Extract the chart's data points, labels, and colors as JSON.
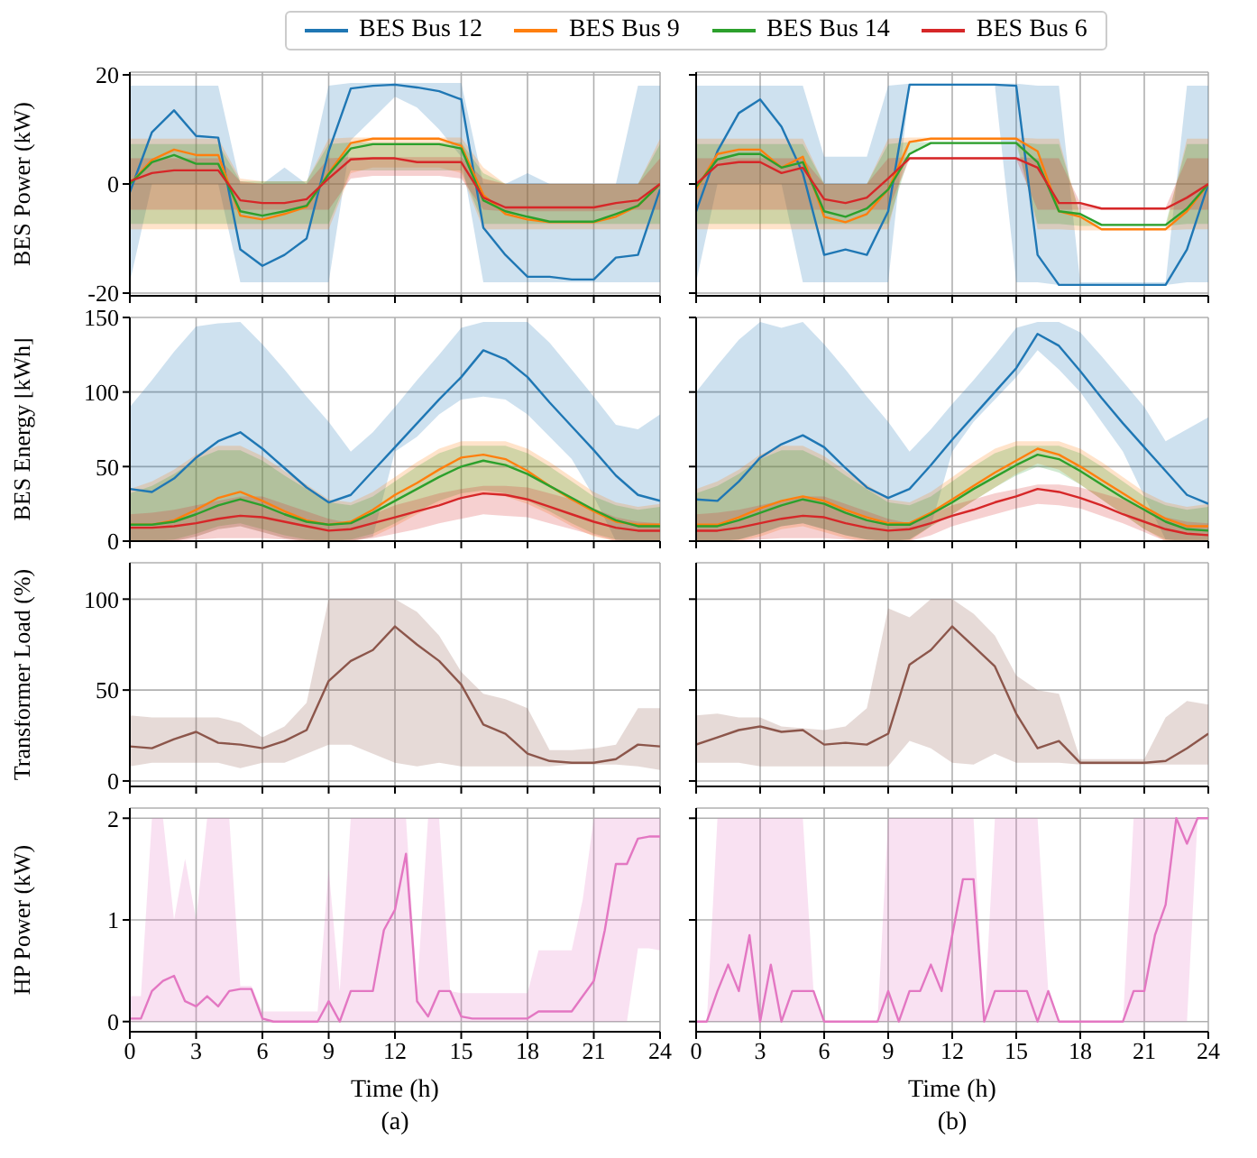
{
  "chart_data": [
    {
      "type": "line",
      "ylabel": "BES Power (kW)",
      "legend": "top",
      "grid": true,
      "tick_labels": "y",
      "xlim": [
        0,
        24
      ],
      "xticks": [
        0,
        3,
        6,
        9,
        12,
        15,
        18,
        21,
        24
      ],
      "ylim": [
        -20.5,
        20.5
      ],
      "yticks": [
        -20,
        0,
        20
      ],
      "x": [
        0,
        1,
        2,
        3,
        4,
        5,
        6,
        7,
        8,
        9,
        10,
        11,
        12,
        13,
        14,
        15,
        16,
        17,
        18,
        19,
        20,
        21,
        22,
        23,
        24
      ],
      "series": [
        {
          "name": "BES Bus 12",
          "color": "#1f77b4",
          "values": [
            -1.5,
            9.5,
            13.5,
            8.8,
            8.5,
            -12,
            -15,
            -13,
            -10,
            6,
            17.5,
            18,
            18.2,
            17.7,
            17,
            15.5,
            -8,
            -13,
            -17,
            -17,
            -17.5,
            -17.5,
            -13.5,
            -13,
            -1
          ],
          "lower": [
            -18,
            0,
            0,
            0,
            0,
            -18,
            -18,
            -18,
            -18,
            -18,
            8,
            12,
            16,
            14,
            10,
            5,
            -18,
            -18,
            -18,
            -18,
            -18,
            -18,
            -18,
            -18,
            -18
          ],
          "upper": [
            18,
            18,
            18,
            18,
            18,
            0,
            0,
            3,
            0,
            18,
            18.5,
            18.5,
            18.5,
            18.5,
            18.5,
            18.5,
            0,
            0,
            2,
            0,
            0,
            0,
            0,
            18,
            18
          ]
        },
        {
          "name": "BES Bus 9",
          "color": "#ff7f0e",
          "values": [
            0,
            4.4,
            6.3,
            5.3,
            5.3,
            -5.8,
            -6.5,
            -5.5,
            -4.2,
            2,
            7.5,
            8.3,
            8.3,
            8.3,
            8.3,
            7,
            -2,
            -5.5,
            -6.5,
            -7,
            -7,
            -7,
            -6,
            -4,
            0
          ],
          "lower": [
            -8.3,
            -8.3,
            -8.3,
            -8.3,
            -8.3,
            -8.3,
            -8.3,
            -8.3,
            -8.3,
            -8.3,
            2,
            3,
            3,
            3,
            3,
            2,
            -8.3,
            -8.3,
            -8.3,
            -8.3,
            -8.3,
            -8.3,
            -8.3,
            -8.3,
            -8.3
          ],
          "upper": [
            8.3,
            8.3,
            8.3,
            8.3,
            8.3,
            1,
            0.5,
            0.5,
            0.5,
            8.3,
            8.5,
            8.5,
            8.5,
            8.5,
            8.5,
            8.5,
            3,
            0,
            0,
            0,
            0,
            0,
            0,
            0,
            8.3
          ]
        },
        {
          "name": "BES Bus 14",
          "color": "#2ca02c",
          "values": [
            0,
            4,
            5.3,
            3.7,
            3.7,
            -5,
            -5.8,
            -5,
            -4,
            1.8,
            6.5,
            7.3,
            7.3,
            7.3,
            7.3,
            6.5,
            -3,
            -5,
            -6,
            -6.9,
            -6.9,
            -6.9,
            -5.5,
            -4,
            0
          ],
          "lower": [
            -7.3,
            -7.3,
            -7.3,
            -7.3,
            -7.3,
            -7.3,
            -7.3,
            -7.3,
            -7.3,
            -7.3,
            2.5,
            2.5,
            2.5,
            2.5,
            2.5,
            2.5,
            -7.3,
            -7.3,
            -7.3,
            -7.3,
            -7.3,
            -7.3,
            -7.3,
            -7.3,
            -7.3
          ],
          "upper": [
            7.3,
            7.3,
            7.3,
            7.3,
            7.3,
            0.5,
            0.5,
            0.5,
            0.5,
            7.3,
            7.6,
            7.6,
            7.6,
            7.6,
            7.6,
            7.6,
            2,
            0,
            0,
            0,
            0,
            0,
            0,
            0,
            7.3
          ]
        },
        {
          "name": "BES Bus 6",
          "color": "#d62728",
          "values": [
            0.5,
            2,
            2.5,
            2.5,
            2.5,
            -3,
            -3.5,
            -3.5,
            -2.8,
            1,
            4.5,
            4.7,
            4.7,
            4,
            4,
            4,
            -2.5,
            -4.3,
            -4.3,
            -4.3,
            -4.3,
            -4.3,
            -3.5,
            -3,
            0
          ],
          "lower": [
            -4.7,
            -4.7,
            -4.7,
            -4.7,
            -4.7,
            -4.7,
            -4.7,
            -4.7,
            -4.7,
            -4.7,
            1,
            1.5,
            1.5,
            1.5,
            1.5,
            1,
            -4.7,
            -5,
            -5,
            -5,
            -5,
            -5,
            -4.7,
            -4.7,
            -4.7
          ],
          "upper": [
            4.7,
            4.7,
            4.7,
            4.7,
            4.7,
            0.5,
            0,
            0,
            0,
            4.7,
            4.9,
            4.9,
            4.9,
            4.9,
            4.9,
            4.9,
            1,
            0,
            0,
            0,
            0,
            0,
            0,
            0,
            4.7
          ]
        }
      ]
    },
    {
      "type": "line",
      "grid": true,
      "tick_labels": false,
      "xlim": [
        0,
        24
      ],
      "xticks": [
        0,
        3,
        6,
        9,
        12,
        15,
        18,
        21,
        24
      ],
      "ylim": [
        -20.5,
        20.5
      ],
      "yticks": [
        -20,
        0,
        20
      ],
      "x": [
        0,
        1,
        2,
        3,
        4,
        5,
        6,
        7,
        8,
        9,
        10,
        11,
        12,
        13,
        14,
        15,
        16,
        17,
        18,
        19,
        20,
        21,
        22,
        23,
        24
      ],
      "series": [
        {
          "color": "#1f77b4",
          "values": [
            -5,
            6,
            13,
            15.5,
            10.5,
            2,
            -13,
            -12,
            -13,
            -5,
            18.2,
            18.2,
            18.2,
            18.2,
            18.2,
            18,
            -13,
            -18.5,
            -18.5,
            -18.5,
            -18.5,
            -18.5,
            -18.5,
            -12,
            0
          ],
          "lower": [
            -18,
            0,
            0,
            0,
            0,
            -18,
            -18,
            -18,
            -18,
            -18,
            18,
            18,
            18,
            18,
            18,
            -18,
            -18,
            -18.5,
            -18.5,
            -18.5,
            -18.5,
            -18.5,
            -18.5,
            -18,
            -18
          ],
          "upper": [
            18,
            18,
            18,
            18,
            18,
            18,
            5,
            5,
            5,
            18,
            18.4,
            18.4,
            18.4,
            18.4,
            18.4,
            18.4,
            18,
            18,
            -18,
            -18,
            -18,
            -18,
            -18,
            18,
            18
          ]
        },
        {
          "color": "#ff7f0e",
          "values": [
            -1,
            5.5,
            6.3,
            6.3,
            3,
            5,
            -6,
            -7,
            -5.5,
            -1,
            7.7,
            8.3,
            8.3,
            8.3,
            8.3,
            8.3,
            6,
            -5,
            -6,
            -8.3,
            -8.3,
            -8.3,
            -8.3,
            -5,
            0
          ],
          "lower": [
            -8.3,
            -8.3,
            -8.3,
            -8.3,
            -8.3,
            -8.3,
            -8.3,
            -8.3,
            -8.3,
            -8.3,
            7.5,
            8.1,
            8.1,
            8.1,
            8.1,
            8.1,
            -8.3,
            -8.3,
            -8.5,
            -8.5,
            -8.5,
            -8.5,
            -8.5,
            -8.3,
            -8.3
          ],
          "upper": [
            8.3,
            8.3,
            8.3,
            8.3,
            8.3,
            8.3,
            0,
            0,
            0,
            8.3,
            8.5,
            8.5,
            8.5,
            8.5,
            8.5,
            8.5,
            8.3,
            8.3,
            -6,
            -8.1,
            -8.1,
            -8.1,
            -8.1,
            8.3,
            8.3
          ]
        },
        {
          "color": "#2ca02c",
          "values": [
            -0.5,
            4.5,
            5.5,
            5.5,
            3,
            4,
            -5,
            -6,
            -4.5,
            -1,
            5.5,
            7.5,
            7.5,
            7.5,
            7.5,
            7.5,
            4,
            -5,
            -5.5,
            -7.5,
            -7.5,
            -7.5,
            -7.5,
            -4.5,
            0
          ],
          "lower": [
            -7.3,
            -7.3,
            -7.3,
            -7.3,
            -7.3,
            -7.3,
            -7.3,
            -7.3,
            -7.3,
            -7.3,
            5.3,
            7.3,
            7.3,
            7.3,
            7.3,
            7.3,
            -7.3,
            -7.3,
            -7.7,
            -7.7,
            -7.7,
            -7.7,
            -7.7,
            -7.3,
            -7.3
          ],
          "upper": [
            7.3,
            7.3,
            7.3,
            7.3,
            7.3,
            7.3,
            0,
            0,
            0,
            7.3,
            7.7,
            7.7,
            7.7,
            7.7,
            7.7,
            7.7,
            7.3,
            7.3,
            -5.5,
            -7.3,
            -7.3,
            -7.3,
            -7.3,
            7.3,
            7.3
          ]
        },
        {
          "color": "#d62728",
          "values": [
            0,
            3.5,
            4,
            4,
            2,
            3,
            -2.8,
            -3.5,
            -2.5,
            1,
            4.7,
            4.7,
            4.7,
            4.7,
            4.7,
            4.7,
            3,
            -3.5,
            -3.5,
            -4.5,
            -4.5,
            -4.5,
            -4.5,
            -2.5,
            0
          ],
          "lower": [
            -4.7,
            -4.7,
            -4.7,
            -4.7,
            -4.7,
            -4.7,
            -4.7,
            -4.7,
            -4.7,
            -4.7,
            4.5,
            4.5,
            4.5,
            4.5,
            4.5,
            4.5,
            -4.7,
            -4.7,
            -4.7,
            -4.7,
            -4.7,
            -4.7,
            -4.7,
            -4.7,
            -4.7
          ],
          "upper": [
            4.7,
            4.7,
            4.7,
            4.7,
            4.7,
            4.7,
            0,
            0,
            0,
            4.7,
            4.9,
            4.9,
            4.9,
            4.9,
            4.9,
            4.9,
            4.7,
            4.7,
            -3.5,
            -4.3,
            -4.3,
            -4.3,
            -4.3,
            4.7,
            4.7
          ]
        }
      ]
    },
    {
      "type": "line",
      "ylabel": "BES Energy [kWh]",
      "grid": true,
      "tick_labels": "y",
      "xlim": [
        0,
        24
      ],
      "xticks": [
        0,
        3,
        6,
        9,
        12,
        15,
        18,
        21,
        24
      ],
      "ylim": [
        0,
        150
      ],
      "yticks": [
        0,
        50,
        100,
        150
      ],
      "x": [
        0,
        1,
        2,
        3,
        4,
        5,
        6,
        7,
        8,
        9,
        10,
        11,
        12,
        13,
        14,
        15,
        16,
        17,
        18,
        19,
        20,
        21,
        22,
        23,
        24
      ],
      "series": [
        {
          "color": "#1f77b4",
          "values": [
            35,
            33,
            42,
            56,
            67,
            73,
            62,
            49,
            36,
            26,
            31,
            47,
            63,
            79,
            95,
            110,
            128,
            122,
            110,
            93,
            77,
            61,
            44,
            31,
            27
          ],
          "lower": [
            0,
            0,
            0,
            3,
            8,
            10,
            6,
            2,
            0,
            0,
            0,
            3,
            60,
            70,
            85,
            95,
            97,
            95,
            85,
            70,
            55,
            30,
            0,
            0,
            0
          ],
          "upper": [
            90,
            108,
            127,
            144,
            146,
            147,
            132,
            115,
            97,
            80,
            60,
            73,
            90,
            108,
            125,
            143,
            147,
            147,
            147,
            133,
            115,
            97,
            78,
            75,
            85
          ]
        },
        {
          "color": "#ff7f0e",
          "values": [
            11,
            11,
            14,
            21,
            29,
            33,
            27,
            20,
            14,
            11,
            13,
            21,
            31,
            39,
            48,
            56,
            58,
            55,
            47,
            37,
            28,
            20,
            13,
            11,
            11
          ],
          "lower": [
            0,
            0,
            0,
            3,
            8,
            10,
            6,
            2,
            0,
            0,
            0,
            3,
            10,
            18,
            25,
            30,
            32,
            30,
            25,
            18,
            10,
            3,
            0,
            0,
            0
          ],
          "upper": [
            35,
            40,
            48,
            58,
            64,
            64,
            57,
            47,
            38,
            28,
            26,
            33,
            43,
            53,
            62,
            67,
            67,
            67,
            62,
            53,
            43,
            33,
            26,
            23,
            25
          ]
        },
        {
          "color": "#2ca02c",
          "values": [
            11,
            11,
            13,
            18,
            24,
            28,
            24,
            18,
            13,
            11,
            12,
            19,
            27,
            35,
            43,
            50,
            54,
            51,
            45,
            37,
            29,
            21,
            14,
            10,
            10
          ],
          "lower": [
            0,
            0,
            1,
            5,
            10,
            12,
            8,
            4,
            1,
            0,
            1,
            5,
            12,
            20,
            27,
            32,
            34,
            32,
            27,
            20,
            12,
            5,
            1,
            0,
            0
          ],
          "upper": [
            32,
            37,
            45,
            55,
            61,
            61,
            54,
            44,
            35,
            26,
            24,
            30,
            40,
            50,
            59,
            64,
            64,
            64,
            59,
            50,
            40,
            30,
            24,
            21,
            23
          ]
        },
        {
          "color": "#d62728",
          "values": [
            9,
            9,
            10,
            12,
            15,
            17,
            16,
            13,
            10,
            7,
            8,
            12,
            16,
            20,
            24,
            29,
            32,
            31,
            28,
            23,
            18,
            13,
            9,
            7,
            7
          ],
          "lower": [
            0,
            0,
            0,
            1,
            2,
            2,
            2,
            1,
            0,
            0,
            0,
            2,
            5,
            8,
            12,
            15,
            18,
            17,
            16,
            12,
            8,
            4,
            0,
            0,
            0
          ],
          "upper": [
            18,
            19,
            21,
            24,
            27,
            30,
            30,
            25,
            20,
            15,
            12,
            18,
            24,
            28,
            32,
            35,
            37,
            37,
            36,
            32,
            28,
            22,
            16,
            13,
            12
          ]
        }
      ]
    },
    {
      "type": "line",
      "grid": true,
      "tick_labels": false,
      "xlim": [
        0,
        24
      ],
      "xticks": [
        0,
        3,
        6,
        9,
        12,
        15,
        18,
        21,
        24
      ],
      "ylim": [
        0,
        150
      ],
      "yticks": [
        0,
        50,
        100,
        150
      ],
      "x": [
        0,
        1,
        2,
        3,
        4,
        5,
        6,
        7,
        8,
        9,
        10,
        11,
        12,
        13,
        14,
        15,
        16,
        17,
        18,
        19,
        20,
        21,
        22,
        23,
        24
      ],
      "series": [
        {
          "color": "#1f77b4",
          "values": [
            28,
            27,
            40,
            56,
            65,
            71,
            63,
            49,
            36,
            29,
            35,
            51,
            68,
            84,
            100,
            116,
            139,
            131,
            114,
            96,
            79,
            63,
            47,
            31,
            25
          ],
          "lower": [
            0,
            0,
            1,
            5,
            10,
            12,
            8,
            4,
            1,
            0,
            1,
            10,
            60,
            80,
            95,
            110,
            128,
            115,
            100,
            80,
            60,
            30,
            1,
            0,
            0
          ],
          "upper": [
            100,
            118,
            135,
            147,
            143,
            147,
            132,
            115,
            97,
            80,
            60,
            75,
            92,
            108,
            125,
            143,
            147,
            147,
            140,
            124,
            107,
            90,
            67,
            75,
            83
          ]
        },
        {
          "color": "#ff7f0e",
          "values": [
            11,
            11,
            16,
            22,
            27,
            30,
            27,
            21,
            16,
            12,
            12,
            19,
            28,
            37,
            46,
            54,
            62,
            58,
            50,
            41,
            32,
            23,
            15,
            10,
            10
          ],
          "lower": [
            0,
            0,
            0,
            3,
            8,
            10,
            6,
            2,
            0,
            0,
            0,
            10,
            18,
            27,
            36,
            45,
            52,
            48,
            38,
            28,
            18,
            8,
            0,
            0,
            0
          ],
          "upper": [
            35,
            40,
            48,
            58,
            64,
            64,
            57,
            47,
            38,
            28,
            26,
            33,
            43,
            53,
            62,
            67,
            67,
            67,
            62,
            53,
            43,
            33,
            26,
            23,
            25
          ]
        },
        {
          "color": "#2ca02c",
          "values": [
            10,
            10,
            14,
            19,
            24,
            28,
            25,
            19,
            14,
            11,
            11,
            18,
            26,
            35,
            43,
            51,
            58,
            55,
            47,
            38,
            29,
            21,
            13,
            8,
            7
          ],
          "lower": [
            0,
            0,
            1,
            5,
            10,
            12,
            8,
            4,
            1,
            0,
            1,
            10,
            18,
            27,
            36,
            44,
            50,
            46,
            38,
            28,
            18,
            8,
            1,
            0,
            0
          ],
          "upper": [
            32,
            37,
            45,
            55,
            61,
            61,
            54,
            44,
            35,
            26,
            24,
            30,
            40,
            50,
            59,
            64,
            64,
            64,
            59,
            50,
            40,
            30,
            24,
            21,
            23
          ]
        },
        {
          "color": "#d62728",
          "values": [
            7,
            7,
            9,
            12,
            15,
            17,
            16,
            12,
            9,
            7,
            8,
            12,
            17,
            21,
            26,
            30,
            35,
            33,
            29,
            24,
            18,
            13,
            8,
            5,
            4
          ],
          "lower": [
            0,
            0,
            0,
            1,
            2,
            2,
            2,
            1,
            0,
            0,
            0,
            4,
            10,
            14,
            18,
            22,
            25,
            24,
            22,
            17,
            12,
            6,
            0,
            0,
            0
          ],
          "upper": [
            18,
            19,
            21,
            24,
            27,
            30,
            30,
            25,
            20,
            15,
            12,
            18,
            24,
            28,
            32,
            35,
            38,
            38,
            36,
            32,
            28,
            22,
            16,
            13,
            12
          ]
        }
      ]
    },
    {
      "type": "line",
      "ylabel": "Transformer Load (%)",
      "grid": true,
      "tick_labels": "y",
      "xlim": [
        0,
        24
      ],
      "xticks": [
        0,
        3,
        6,
        9,
        12,
        15,
        18,
        21,
        24
      ],
      "ylim": [
        -3,
        120
      ],
      "yticks": [
        0,
        50,
        100
      ],
      "x": [
        0,
        1,
        2,
        3,
        4,
        5,
        6,
        7,
        8,
        9,
        10,
        11,
        12,
        13,
        14,
        15,
        16,
        17,
        18,
        19,
        20,
        21,
        22,
        23,
        24
      ],
      "series": [
        {
          "color": "#8c564b",
          "values": [
            19,
            18,
            23,
            27,
            21,
            20,
            18,
            22,
            28,
            55,
            66,
            72,
            85,
            75,
            66,
            53,
            31,
            26,
            15,
            11,
            10,
            10,
            12,
            20,
            19
          ],
          "lower": [
            8,
            10,
            10,
            10,
            10,
            7,
            10,
            10,
            15,
            20,
            20,
            15,
            10,
            8,
            10,
            8,
            8,
            8,
            8,
            8,
            9,
            9,
            9,
            8,
            6
          ],
          "upper": [
            36,
            35,
            35,
            35,
            35,
            32,
            24,
            30,
            43,
            100,
            100,
            100,
            100,
            93,
            80,
            60,
            48,
            45,
            40,
            17,
            17,
            18,
            20,
            40,
            40
          ]
        }
      ]
    },
    {
      "type": "line",
      "grid": true,
      "tick_labels": false,
      "xlim": [
        0,
        24
      ],
      "xticks": [
        0,
        3,
        6,
        9,
        12,
        15,
        18,
        21,
        24
      ],
      "ylim": [
        -3,
        120
      ],
      "yticks": [
        0,
        50,
        100
      ],
      "x": [
        0,
        1,
        2,
        3,
        4,
        5,
        6,
        7,
        8,
        9,
        10,
        11,
        12,
        13,
        14,
        15,
        16,
        17,
        18,
        19,
        20,
        21,
        22,
        23,
        24
      ],
      "series": [
        {
          "color": "#8c564b",
          "values": [
            20,
            24,
            28,
            30,
            27,
            28,
            20,
            21,
            20,
            26,
            64,
            72,
            85,
            74,
            63,
            37,
            18,
            22,
            10,
            10,
            10,
            10,
            11,
            18,
            26
          ],
          "lower": [
            10,
            10,
            10,
            8,
            8,
            8,
            8,
            8,
            8,
            8,
            22,
            18,
            10,
            9,
            15,
            10,
            10,
            10,
            9,
            9,
            9,
            9,
            9,
            9,
            9
          ],
          "upper": [
            36,
            37,
            35,
            35,
            30,
            29,
            28,
            30,
            40,
            95,
            90,
            100,
            100,
            92,
            80,
            58,
            50,
            48,
            12,
            12,
            12,
            12,
            35,
            44,
            42
          ]
        }
      ]
    },
    {
      "type": "line",
      "ylabel": "HP Power (kW)",
      "xlabel": "Time (h)",
      "annotations": [
        "(a)"
      ],
      "grid": true,
      "xlim": [
        0,
        24
      ],
      "xticks": [
        0,
        3,
        6,
        9,
        12,
        15,
        18,
        21,
        24
      ],
      "ylim": [
        -0.1,
        2.1
      ],
      "yticks": [
        0,
        1,
        2
      ],
      "x": [
        0,
        0.5,
        1,
        1.5,
        2,
        2.5,
        3,
        3.5,
        4,
        4.5,
        5,
        5.5,
        6,
        6.5,
        7,
        7.5,
        8,
        8.5,
        9,
        9.5,
        10,
        10.5,
        11,
        11.5,
        12,
        12.5,
        13,
        13.5,
        14,
        14.5,
        15,
        15.5,
        16,
        16.5,
        17,
        17.5,
        18,
        18.5,
        19,
        19.5,
        20,
        20.5,
        21,
        21.5,
        22,
        22.5,
        23,
        23.5,
        24
      ],
      "series": [
        {
          "color": "#e377c2",
          "values": [
            0.03,
            0.03,
            0.3,
            0.4,
            0.45,
            0.2,
            0.15,
            0.25,
            0.15,
            0.3,
            0.32,
            0.32,
            0.03,
            0,
            0,
            0,
            0,
            0,
            0.2,
            0,
            0.3,
            0.3,
            0.3,
            0.9,
            1.1,
            1.65,
            0.2,
            0.05,
            0.3,
            0.3,
            0.05,
            0.03,
            0.03,
            0.03,
            0.03,
            0.03,
            0.03,
            0.1,
            0.1,
            0.1,
            0.1,
            0.25,
            0.4,
            0.9,
            1.55,
            1.55,
            1.8,
            1.82,
            1.82
          ],
          "lower": [
            0,
            0,
            0,
            0,
            0,
            0,
            0,
            0,
            0,
            0,
            0,
            0,
            0,
            0,
            0,
            0,
            0,
            0,
            0,
            0,
            0,
            0,
            0,
            0,
            0,
            0,
            0,
            0,
            0,
            0,
            0,
            0,
            0,
            0,
            0,
            0,
            0,
            0,
            0,
            0,
            0,
            0,
            0,
            0,
            0,
            0,
            0.72,
            0.72,
            0.7
          ],
          "upper": [
            0.25,
            0.25,
            2,
            2,
            1,
            1.6,
            1,
            2,
            2,
            2,
            0.35,
            0.35,
            0.1,
            0.1,
            0.1,
            0.1,
            0.1,
            0.1,
            1.5,
            0.3,
            2,
            2,
            2,
            2,
            2,
            2,
            0.3,
            2,
            2,
            0.3,
            0.28,
            0.28,
            0.28,
            0.28,
            0.28,
            0.28,
            0.28,
            0.7,
            0.7,
            0.7,
            0.7,
            1.2,
            2,
            2,
            2,
            2,
            2,
            2,
            2
          ]
        }
      ]
    },
    {
      "type": "line",
      "xlabel": "Time (h)",
      "annotations": [
        "(b)"
      ],
      "grid": true,
      "tick_labels": "x",
      "xlim": [
        0,
        24
      ],
      "xticks": [
        0,
        3,
        6,
        9,
        12,
        15,
        18,
        21,
        24
      ],
      "ylim": [
        -0.1,
        2.1
      ],
      "yticks": [
        0,
        1,
        2
      ],
      "x": [
        0,
        0.5,
        1,
        1.5,
        2,
        2.5,
        3,
        3.5,
        4,
        4.5,
        5,
        5.5,
        6,
        6.5,
        7,
        7.5,
        8,
        8.5,
        9,
        9.5,
        10,
        10.5,
        11,
        11.5,
        12,
        12.5,
        13,
        13.5,
        14,
        14.5,
        15,
        15.5,
        16,
        16.5,
        17,
        17.5,
        18,
        18.5,
        19,
        19.5,
        20,
        20.5,
        21,
        21.5,
        22,
        22.5,
        23,
        23.5,
        24
      ],
      "series": [
        {
          "color": "#e377c2",
          "values": [
            0,
            0,
            0.3,
            0.56,
            0.3,
            0.85,
            0,
            0.56,
            0,
            0.3,
            0.3,
            0.3,
            0,
            0,
            0,
            0,
            0,
            0,
            0.3,
            0,
            0.3,
            0.3,
            0.56,
            0.3,
            0.85,
            1.4,
            1.4,
            0,
            0.3,
            0.3,
            0.3,
            0.3,
            0,
            0.3,
            0,
            0,
            0,
            0,
            0,
            0,
            0,
            0.3,
            0.3,
            0.85,
            1.15,
            2,
            1.75,
            2,
            2
          ],
          "lower": [
            0,
            0,
            0,
            0,
            0,
            0,
            0,
            0,
            0,
            0,
            0,
            0,
            0,
            0,
            0,
            0,
            0,
            0,
            0,
            0,
            0,
            0,
            0,
            0,
            0,
            0,
            0,
            0,
            0,
            0,
            0,
            0,
            0,
            0,
            0,
            0,
            0,
            0,
            0,
            0,
            0,
            0,
            0,
            0,
            0,
            0,
            0,
            2,
            2
          ],
          "upper": [
            0,
            0,
            2,
            2,
            2,
            2,
            2,
            2,
            2,
            2,
            2,
            0.3,
            0,
            0,
            0,
            0,
            0,
            0,
            2,
            2,
            2,
            2,
            2,
            2,
            2,
            2,
            2,
            0,
            2,
            2,
            2,
            2,
            2,
            0.3,
            0,
            0,
            0,
            0,
            0,
            0,
            0,
            2,
            2,
            2,
            2,
            2,
            2,
            2,
            2
          ]
        }
      ]
    }
  ]
}
